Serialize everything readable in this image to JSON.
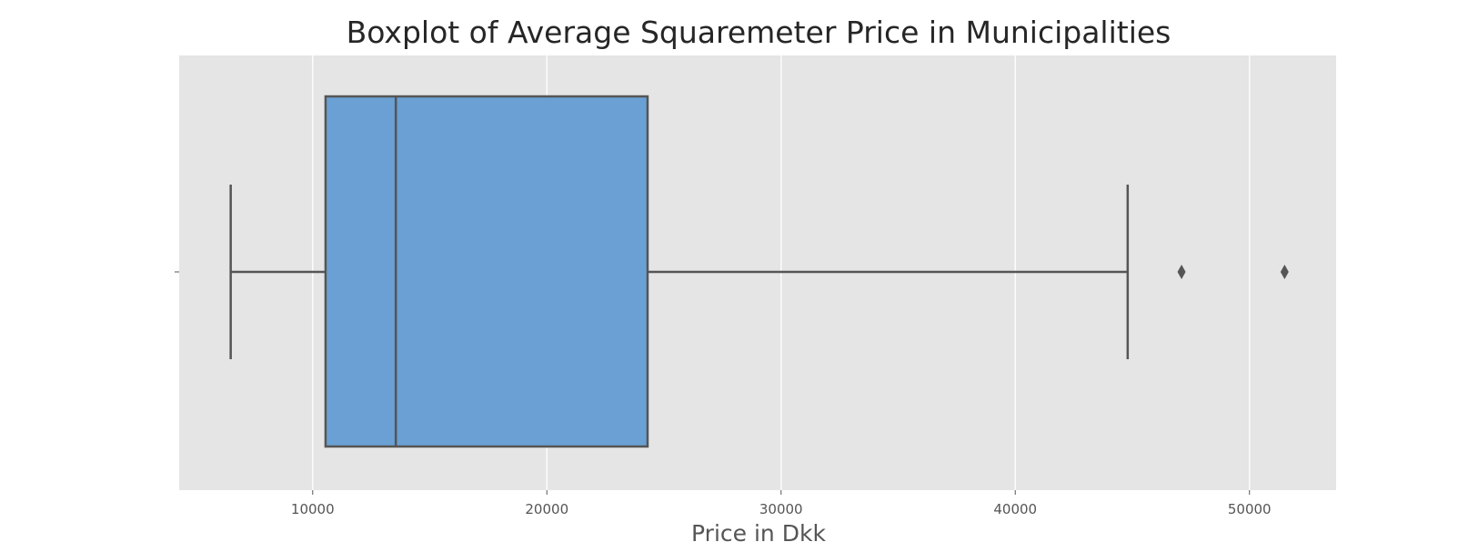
{
  "chart_data": {
    "type": "boxplot",
    "title": "Boxplot of Average Squaremeter Price in Municipalities",
    "xlabel": "Price in Dkk",
    "ylabel": "",
    "xlim": [
      4300,
      53700
    ],
    "x_ticks": [
      10000,
      20000,
      30000,
      40000,
      50000
    ],
    "x_tick_labels": [
      "10000",
      "20000",
      "30000",
      "40000",
      "50000"
    ],
    "grid": true,
    "orientation": "horizontal",
    "box": {
      "whisker_low": 6500,
      "q1": 10550,
      "median": 13550,
      "q3": 24300,
      "whisker_high": 44800,
      "outliers": [
        47100,
        51500
      ]
    },
    "colors": {
      "box_fill": "#6aa0d3",
      "line": "#555555",
      "plot_background": "#e5e5e5",
      "grid": "#ffffff"
    }
  }
}
